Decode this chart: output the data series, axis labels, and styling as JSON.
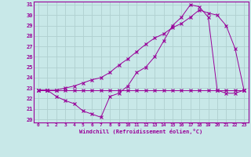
{
  "xlabel": "Windchill (Refroidissement éolien,°C)",
  "background_color": "#c8e8e8",
  "grid_color": "#b0d0d0",
  "line_color": "#990099",
  "xlim": [
    -0.5,
    23.5
  ],
  "ylim": [
    19.7,
    31.3
  ],
  "xticks": [
    0,
    1,
    2,
    3,
    4,
    5,
    6,
    7,
    8,
    9,
    10,
    11,
    12,
    13,
    14,
    15,
    16,
    17,
    18,
    19,
    20,
    21,
    22,
    23
  ],
  "yticks": [
    20,
    21,
    22,
    23,
    24,
    25,
    26,
    27,
    28,
    29,
    30,
    31
  ],
  "series1_x": [
    0,
    1,
    2,
    3,
    4,
    5,
    6,
    7,
    8,
    9,
    10,
    11,
    12,
    13,
    14,
    15,
    16,
    17,
    18,
    19,
    20,
    21,
    22,
    23
  ],
  "series1_y": [
    22.8,
    22.8,
    22.8,
    22.8,
    22.8,
    22.8,
    22.8,
    22.8,
    22.8,
    22.8,
    22.8,
    22.8,
    22.8,
    22.8,
    22.8,
    22.8,
    22.8,
    22.8,
    22.8,
    22.8,
    22.8,
    22.8,
    22.8,
    22.8
  ],
  "series2_x": [
    0,
    1,
    2,
    3,
    4,
    5,
    6,
    7,
    8,
    9,
    10,
    11,
    12,
    13,
    14,
    15,
    16,
    17,
    18,
    19,
    20,
    21,
    22,
    23
  ],
  "series2_y": [
    22.8,
    22.8,
    22.2,
    21.8,
    21.5,
    20.8,
    20.5,
    20.2,
    22.2,
    22.5,
    23.2,
    24.5,
    25.0,
    26.0,
    27.5,
    29.0,
    29.8,
    31.0,
    30.8,
    29.8,
    22.8,
    22.5,
    22.5,
    22.8
  ],
  "series3_x": [
    0,
    1,
    2,
    3,
    4,
    5,
    6,
    7,
    8,
    9,
    10,
    11,
    12,
    13,
    14,
    15,
    16,
    17,
    18,
    19,
    20,
    21,
    22,
    23
  ],
  "series3_y": [
    22.8,
    22.8,
    22.8,
    23.0,
    23.2,
    23.5,
    23.8,
    24.0,
    24.5,
    25.2,
    25.8,
    26.5,
    27.2,
    27.8,
    28.2,
    28.8,
    29.2,
    29.8,
    30.5,
    30.2,
    30.0,
    29.0,
    26.8,
    22.8
  ]
}
